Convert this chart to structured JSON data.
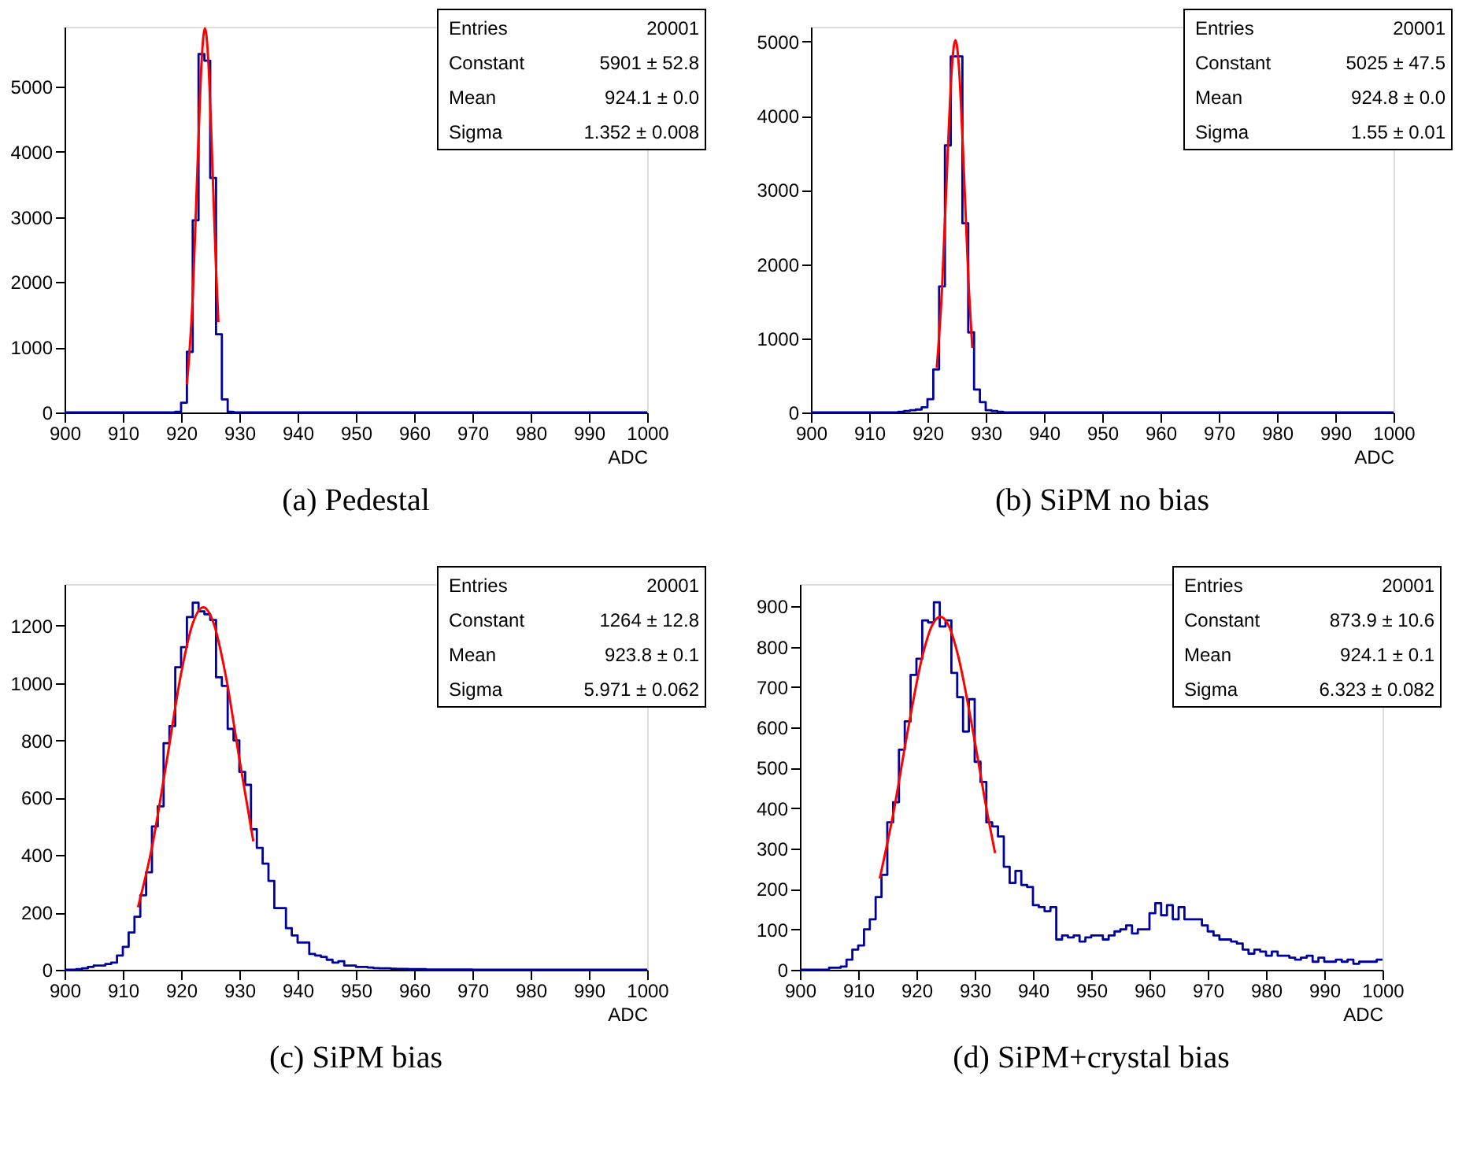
{
  "chart_data": [
    {
      "type": "histogram",
      "title": "(a)  Pedestal",
      "xlabel": "ADC",
      "xlim": [
        900,
        1000
      ],
      "xticks": [
        900,
        910,
        920,
        930,
        940,
        950,
        960,
        970,
        980,
        990,
        1000
      ],
      "ylim": [
        0,
        5920
      ],
      "yticks": [
        0,
        1000,
        2000,
        3000,
        4000,
        5000
      ],
      "annotations": [
        "Entries",
        "20001",
        "Constant",
        "5901 ± 52.8",
        "Mean",
        "924.1 ± 0.0",
        "Sigma",
        "1.352 ± 0.008"
      ],
      "series": [
        {
          "type": "histogram",
          "color": "#00009c",
          "bins": [
            900,
            901,
            902,
            903,
            904,
            905,
            906,
            907,
            908,
            909,
            910,
            911,
            912,
            913,
            914,
            915,
            916,
            917,
            918,
            919,
            920,
            921,
            922,
            923,
            924,
            925,
            926,
            927,
            928,
            929,
            930,
            931,
            932,
            933,
            934,
            935,
            936,
            937,
            938,
            939,
            940,
            941,
            942,
            943,
            944,
            945,
            946,
            947,
            948,
            949,
            950,
            951,
            952,
            953,
            954,
            955,
            956,
            957,
            958,
            959,
            960,
            961,
            962,
            963,
            964,
            965,
            966,
            967,
            968,
            969,
            970,
            971,
            972,
            973,
            974,
            975,
            976,
            977,
            978,
            979,
            980,
            981,
            982,
            983,
            984,
            985,
            986,
            987,
            988,
            989,
            990,
            991,
            992,
            993,
            994,
            995,
            996,
            997,
            998,
            999,
            1000
          ],
          "values": [
            0,
            0,
            0,
            0,
            0,
            0,
            0,
            0,
            0,
            0,
            0,
            0,
            0,
            0,
            0,
            0,
            0,
            0,
            0,
            10,
            150,
            930,
            2950,
            5500,
            5400,
            3600,
            1200,
            200,
            10,
            0,
            0,
            0,
            0,
            0,
            0,
            0,
            0,
            0,
            0,
            0,
            0,
            0,
            0,
            0,
            0,
            0,
            0,
            0,
            0,
            0,
            0,
            0,
            0,
            0,
            0,
            0,
            0,
            0,
            0,
            0,
            0,
            0,
            0,
            0,
            0,
            0,
            0,
            0,
            0,
            0,
            0,
            0,
            0,
            0,
            0,
            0,
            0,
            0,
            0,
            0,
            0,
            0,
            0,
            0,
            0,
            0,
            0,
            0,
            0,
            0,
            0,
            0,
            0,
            0,
            0,
            0,
            0,
            0,
            0,
            0
          ]
        },
        {
          "type": "line",
          "color": "#ff0000",
          "x": [
            921,
            922,
            923,
            923.5,
            924.1,
            924.7,
            925.2,
            926,
            926.4
          ],
          "values": [
            430,
            1770,
            4240,
            5350,
            5900,
            5350,
            4240,
            2200,
            1390
          ]
        }
      ]
    },
    {
      "type": "histogram",
      "title": "(b)  SiPM no bias",
      "xlabel": "ADC",
      "xlim": [
        900,
        1000
      ],
      "xticks": [
        900,
        910,
        920,
        930,
        940,
        950,
        960,
        970,
        980,
        990,
        1000
      ],
      "ylim": [
        0,
        5200
      ],
      "yticks": [
        0,
        1000,
        2000,
        3000,
        4000,
        5000
      ],
      "annotations": [
        "Entries",
        "20001",
        "Constant",
        "5025 ± 47.5",
        "Mean",
        "924.8 ± 0.0",
        "Sigma",
        "1.55 ± 0.01"
      ],
      "series": [
        {
          "type": "histogram",
          "color": "#00009c",
          "bins": [
            900,
            901,
            902,
            903,
            904,
            905,
            906,
            907,
            908,
            909,
            910,
            911,
            912,
            913,
            914,
            915,
            916,
            917,
            918,
            919,
            920,
            921,
            922,
            923,
            924,
            925,
            926,
            927,
            928,
            929,
            930,
            931,
            932,
            933,
            934,
            935,
            936,
            937,
            938,
            939,
            940,
            941,
            942,
            943,
            944,
            945,
            946,
            947,
            948,
            949,
            950,
            951,
            952,
            953,
            954,
            955,
            956,
            957,
            958,
            959,
            960,
            961,
            962,
            963,
            964,
            965,
            966,
            967,
            968,
            969,
            970,
            971,
            972,
            973,
            974,
            975,
            976,
            977,
            978,
            979,
            980,
            981,
            982,
            983,
            984,
            985,
            986,
            987,
            988,
            989,
            990,
            991,
            992,
            993,
            994,
            995,
            996,
            997,
            998,
            999,
            1000
          ],
          "values": [
            0,
            0,
            0,
            0,
            0,
            0,
            0,
            0,
            0,
            0,
            0,
            0,
            0,
            0,
            0,
            10,
            20,
            30,
            40,
            70,
            180,
            580,
            1700,
            3600,
            4800,
            4800,
            2550,
            1080,
            310,
            140,
            30,
            20,
            10,
            0,
            0,
            0,
            0,
            0,
            0,
            0,
            0,
            0,
            0,
            0,
            0,
            0,
            0,
            0,
            0,
            0,
            0,
            0,
            0,
            0,
            0,
            0,
            0,
            0,
            0,
            0,
            0,
            0,
            0,
            0,
            0,
            0,
            0,
            0,
            0,
            0,
            0,
            0,
            0,
            0,
            0,
            0,
            0,
            0,
            0,
            0,
            0,
            0,
            0,
            0,
            0,
            0,
            0,
            0,
            0,
            0,
            0,
            0,
            0,
            0,
            0,
            0,
            0,
            0,
            0,
            0
          ]
        },
        {
          "type": "line",
          "color": "#ff0000",
          "x": [
            921.6,
            922.5,
            923.5,
            924.2,
            924.8,
            925.4,
            926.1,
            927.1,
            927.7
          ],
          "values": [
            600,
            1670,
            3540,
            4660,
            5020,
            4660,
            3540,
            1670,
            870
          ]
        }
      ]
    },
    {
      "type": "histogram",
      "title": "(c)  SiPM bias",
      "xlabel": "ADC",
      "xlim": [
        900,
        1000
      ],
      "xticks": [
        900,
        910,
        920,
        930,
        940,
        950,
        960,
        970,
        980,
        990,
        1000
      ],
      "ylim": [
        0,
        1345
      ],
      "yticks": [
        0,
        200,
        400,
        600,
        800,
        1000,
        1200
      ],
      "annotations": [
        "Entries",
        "20001",
        "Constant",
        "1264 ± 12.8",
        "Mean",
        "923.8 ± 0.1",
        "Sigma",
        "5.971 ± 0.062"
      ],
      "series": [
        {
          "type": "histogram",
          "color": "#00009c",
          "bins": [
            900,
            901,
            902,
            903,
            904,
            905,
            906,
            907,
            908,
            909,
            910,
            911,
            912,
            913,
            914,
            915,
            916,
            917,
            918,
            919,
            920,
            921,
            922,
            923,
            924,
            925,
            926,
            927,
            928,
            929,
            930,
            931,
            932,
            933,
            934,
            935,
            936,
            937,
            938,
            939,
            940,
            941,
            942,
            943,
            944,
            945,
            946,
            947,
            948,
            949,
            950,
            951,
            952,
            953,
            954,
            955,
            956,
            957,
            958,
            959,
            960,
            961,
            962,
            963,
            964,
            965,
            966,
            967,
            968,
            969,
            970,
            971,
            972,
            973,
            974,
            975,
            976,
            977,
            978,
            979,
            980,
            981,
            982,
            983,
            984,
            985,
            986,
            987,
            988,
            989,
            990,
            991,
            992,
            993,
            994,
            995,
            996,
            997,
            998,
            999,
            1000
          ],
          "values": [
            0,
            0,
            2,
            5,
            10,
            15,
            15,
            20,
            25,
            50,
            80,
            130,
            185,
            260,
            340,
            500,
            570,
            790,
            850,
            1055,
            1125,
            1230,
            1280,
            1250,
            1240,
            1220,
            1020,
            990,
            840,
            800,
            690,
            645,
            490,
            425,
            370,
            310,
            215,
            215,
            145,
            120,
            95,
            95,
            55,
            50,
            45,
            35,
            25,
            30,
            15,
            15,
            10,
            10,
            8,
            6,
            5,
            5,
            4,
            3,
            3,
            2,
            2,
            2,
            1,
            1,
            1,
            1,
            1,
            1,
            1,
            1,
            0,
            0,
            0,
            0,
            0,
            0,
            0,
            0,
            0,
            0,
            0,
            0,
            0,
            0,
            0,
            0,
            0,
            0,
            0,
            0,
            0,
            0,
            0,
            0,
            0,
            0,
            0,
            0,
            0,
            0
          ]
        },
        {
          "type": "line",
          "color": "#ff0000",
          "x": [
            912.6,
            915,
            917.5,
            920,
            922,
            923.8,
            925.6,
            927.6,
            930.1,
            932.4
          ],
          "values": [
            218,
            427,
            724,
            1033,
            1208,
            1264,
            1208,
            1033,
            724,
            448
          ]
        }
      ]
    },
    {
      "type": "histogram",
      "title": "(d)  SiPM+crystal bias",
      "xlabel": "ADC",
      "xlim": [
        900,
        1000
      ],
      "xticks": [
        900,
        910,
        920,
        930,
        940,
        950,
        960,
        970,
        980,
        990,
        1000
      ],
      "ylim": [
        0,
        955
      ],
      "yticks": [
        0,
        100,
        200,
        300,
        400,
        500,
        600,
        700,
        800,
        900
      ],
      "annotations": [
        "Entries",
        "20001",
        "Constant",
        "873.9 ± 10.6",
        "Mean",
        "924.1 ± 0.1",
        "Sigma",
        "6.323 ± 0.082"
      ],
      "series": [
        {
          "type": "histogram",
          "color": "#00009c",
          "bins": [
            900,
            901,
            902,
            903,
            904,
            905,
            906,
            907,
            908,
            909,
            910,
            911,
            912,
            913,
            914,
            915,
            916,
            917,
            918,
            919,
            920,
            921,
            922,
            923,
            924,
            925,
            926,
            927,
            928,
            929,
            930,
            931,
            932,
            933,
            934,
            935,
            936,
            937,
            938,
            939,
            940,
            941,
            942,
            943,
            944,
            945,
            946,
            947,
            948,
            949,
            950,
            951,
            952,
            953,
            954,
            955,
            956,
            957,
            958,
            959,
            960,
            961,
            962,
            963,
            964,
            965,
            966,
            967,
            968,
            969,
            970,
            971,
            972,
            973,
            974,
            975,
            976,
            977,
            978,
            979,
            980,
            981,
            982,
            983,
            984,
            985,
            986,
            987,
            988,
            989,
            990,
            991,
            992,
            993,
            994,
            995,
            996,
            997,
            998,
            999,
            1000
          ],
          "values": [
            0,
            0,
            0,
            0,
            0,
            5,
            5,
            8,
            25,
            50,
            60,
            100,
            125,
            180,
            235,
            365,
            415,
            545,
            615,
            730,
            770,
            865,
            860,
            910,
            850,
            865,
            735,
            675,
            590,
            670,
            515,
            465,
            365,
            355,
            330,
            255,
            215,
            245,
            210,
            205,
            160,
            155,
            145,
            155,
            75,
            85,
            80,
            85,
            70,
            80,
            85,
            85,
            75,
            85,
            95,
            100,
            110,
            90,
            100,
            100,
            140,
            165,
            135,
            160,
            125,
            155,
            125,
            125,
            125,
            110,
            95,
            85,
            75,
            75,
            70,
            65,
            50,
            40,
            50,
            45,
            35,
            45,
            35,
            35,
            30,
            25,
            30,
            35,
            20,
            30,
            20,
            20,
            25,
            20,
            25,
            15,
            20,
            20,
            20,
            25
          ]
        },
        {
          "type": "line",
          "color": "#ff0000",
          "x": [
            913.7,
            916,
            918.5,
            921,
            922.6,
            924.1,
            925.6,
            927.2,
            929.7,
            932.2,
            933.5
          ],
          "values": [
            226,
            385,
            591,
            775,
            850,
            874,
            850,
            775,
            591,
            385,
            289
          ]
        }
      ]
    }
  ]
}
